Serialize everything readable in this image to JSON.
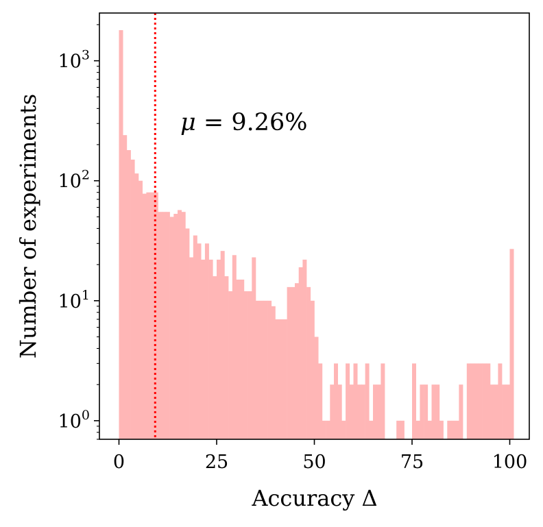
{
  "chart_data": {
    "type": "bar",
    "subtype": "histogram",
    "title": "",
    "xlabel": "Accuracy Δ",
    "ylabel": "Number of experiments",
    "y_scale": "log",
    "xlim": [
      -5,
      105
    ],
    "ylim": [
      0.7,
      2500
    ],
    "x_ticks": [
      0,
      25,
      50,
      75,
      100
    ],
    "y_ticks": [
      {
        "value": 1,
        "base": "10",
        "exp": "0"
      },
      {
        "value": 10,
        "base": "10",
        "exp": "1"
      },
      {
        "value": 100,
        "base": "10",
        "exp": "2"
      },
      {
        "value": 1000,
        "base": "10",
        "exp": "3"
      }
    ],
    "grid": false,
    "bar_color": "#ffb6b6",
    "bin_width": 1,
    "bin_start": 0,
    "values": [
      1800,
      240,
      180,
      150,
      115,
      100,
      78,
      80,
      80,
      80,
      55,
      55,
      55,
      50,
      53,
      57,
      55,
      40,
      23,
      35,
      30,
      22,
      30,
      22,
      16,
      22,
      26,
      16,
      12,
      24,
      15,
      15,
      12,
      12,
      23,
      10,
      10,
      10,
      10,
      9,
      7,
      7,
      7,
      13,
      13,
      14,
      19,
      22,
      13,
      10,
      5,
      3,
      1,
      1,
      2,
      3,
      2,
      1,
      3,
      2,
      3,
      2,
      2,
      3,
      1,
      2,
      2,
      3,
      0,
      0,
      0,
      1,
      1,
      0,
      0,
      3,
      1,
      2,
      2,
      1,
      2,
      2,
      1,
      0,
      1,
      1,
      1,
      2,
      0,
      3,
      3,
      3,
      3,
      3,
      3,
      2,
      2,
      3,
      2,
      2,
      27
    ],
    "mean_line": {
      "value": 9.26,
      "color": "#ff0000",
      "style": "dotted"
    },
    "annotation": {
      "text_math": "μ",
      "text_rest": " = 9.26%"
    }
  }
}
